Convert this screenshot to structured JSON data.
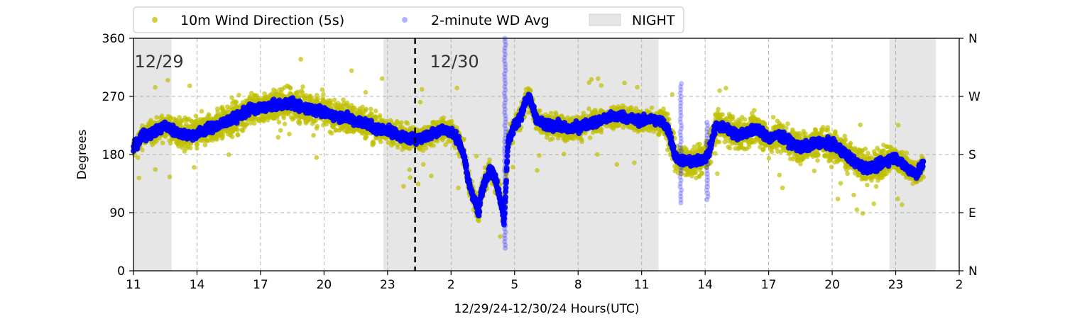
{
  "chart_data": {
    "type": "scatter",
    "xlabel": "12/29/24-12/30/24  Hours(UTC)",
    "ylabel": "Degrees",
    "xlim_hours": [
      11,
      50
    ],
    "ylim": [
      0,
      360
    ],
    "x_ticks": [
      {
        "h": 11,
        "label": "11"
      },
      {
        "h": 14,
        "label": "14"
      },
      {
        "h": 17,
        "label": "17"
      },
      {
        "h": 20,
        "label": "20"
      },
      {
        "h": 23,
        "label": "23"
      },
      {
        "h": 26,
        "label": "2"
      },
      {
        "h": 29,
        "label": "5"
      },
      {
        "h": 32,
        "label": "8"
      },
      {
        "h": 35,
        "label": "11"
      },
      {
        "h": 38,
        "label": "14"
      },
      {
        "h": 41,
        "label": "17"
      },
      {
        "h": 44,
        "label": "20"
      },
      {
        "h": 47,
        "label": "23"
      },
      {
        "h": 50,
        "label": "2"
      }
    ],
    "y_ticks": [
      0,
      90,
      180,
      270,
      360
    ],
    "y_ticks_right": [
      {
        "v": 0,
        "label": "N"
      },
      {
        "v": 90,
        "label": "E"
      },
      {
        "v": 180,
        "label": "S"
      },
      {
        "v": 270,
        "label": "W"
      },
      {
        "v": 360,
        "label": "N"
      }
    ],
    "grid": true,
    "legend_position": "top",
    "day_divider_hour": 24.3,
    "day_labels": [
      {
        "h": 11.05,
        "text": "12/29"
      },
      {
        "h": 25.0,
        "text": "12/30"
      }
    ],
    "night_periods": [
      [
        11.0,
        12.8
      ],
      [
        22.8,
        35.8
      ],
      [
        46.7,
        48.9
      ]
    ],
    "series": [
      {
        "name": "10m Wind Direction (5s)",
        "color": "#bfbf00"
      },
      {
        "name": "2-minute WD Avg",
        "color": "#0000ff"
      },
      {
        "name": "NIGHT",
        "color": "#e6e6e6"
      }
    ],
    "avg_profile": [
      [
        11.0,
        190
      ],
      [
        11.5,
        210
      ],
      [
        12.0,
        215
      ],
      [
        12.5,
        225
      ],
      [
        13.0,
        215
      ],
      [
        13.5,
        210
      ],
      [
        14.0,
        212
      ],
      [
        14.5,
        220
      ],
      [
        15.0,
        225
      ],
      [
        15.5,
        232
      ],
      [
        16.0,
        240
      ],
      [
        16.5,
        250
      ],
      [
        17.0,
        252
      ],
      [
        17.5,
        255
      ],
      [
        18.0,
        258
      ],
      [
        18.5,
        260
      ],
      [
        19.0,
        252
      ],
      [
        19.5,
        250
      ],
      [
        20.0,
        245
      ],
      [
        20.5,
        240
      ],
      [
        21.0,
        238
      ],
      [
        21.5,
        232
      ],
      [
        22.0,
        228
      ],
      [
        22.5,
        220
      ],
      [
        23.0,
        218
      ],
      [
        23.5,
        210
      ],
      [
        24.0,
        205
      ],
      [
        24.5,
        205
      ],
      [
        25.0,
        210
      ],
      [
        25.5,
        220
      ],
      [
        26.0,
        215
      ],
      [
        26.3,
        205
      ],
      [
        26.6,
        180
      ],
      [
        26.8,
        140
      ],
      [
        27.0,
        120
      ],
      [
        27.2,
        100
      ],
      [
        27.3,
        85
      ],
      [
        27.4,
        115
      ],
      [
        27.6,
        140
      ],
      [
        27.8,
        155
      ],
      [
        28.0,
        150
      ],
      [
        28.2,
        130
      ],
      [
        28.4,
        100
      ],
      [
        28.5,
        75
      ],
      [
        28.7,
        200
      ],
      [
        29.0,
        225
      ],
      [
        29.3,
        240
      ],
      [
        29.5,
        260
      ],
      [
        29.7,
        270
      ],
      [
        30.0,
        235
      ],
      [
        30.5,
        225
      ],
      [
        31.0,
        225
      ],
      [
        31.5,
        220
      ],
      [
        32.0,
        222
      ],
      [
        32.5,
        228
      ],
      [
        33.0,
        232
      ],
      [
        33.5,
        238
      ],
      [
        34.0,
        240
      ],
      [
        34.5,
        235
      ],
      [
        35.0,
        232
      ],
      [
        35.5,
        235
      ],
      [
        36.0,
        230
      ],
      [
        36.3,
        215
      ],
      [
        36.6,
        175
      ],
      [
        37.0,
        170
      ],
      [
        37.5,
        168
      ],
      [
        38.0,
        175
      ],
      [
        38.2,
        185
      ],
      [
        38.5,
        225
      ],
      [
        39.0,
        220
      ],
      [
        39.5,
        210
      ],
      [
        40.0,
        215
      ],
      [
        40.5,
        220
      ],
      [
        41.0,
        205
      ],
      [
        41.5,
        210
      ],
      [
        42.0,
        200
      ],
      [
        42.5,
        190
      ],
      [
        43.0,
        195
      ],
      [
        43.5,
        200
      ],
      [
        44.0,
        195
      ],
      [
        44.5,
        185
      ],
      [
        45.0,
        170
      ],
      [
        45.5,
        160
      ],
      [
        46.0,
        160
      ],
      [
        46.5,
        170
      ],
      [
        47.0,
        175
      ],
      [
        47.5,
        160
      ],
      [
        48.0,
        150
      ],
      [
        48.3,
        165
      ]
    ],
    "avg_spikes": [
      {
        "h": 28.55,
        "from": 35,
        "to": 360
      },
      {
        "h": 36.85,
        "from": 105,
        "to": 290
      },
      {
        "h": 38.1,
        "from": 110,
        "to": 230
      }
    ]
  }
}
